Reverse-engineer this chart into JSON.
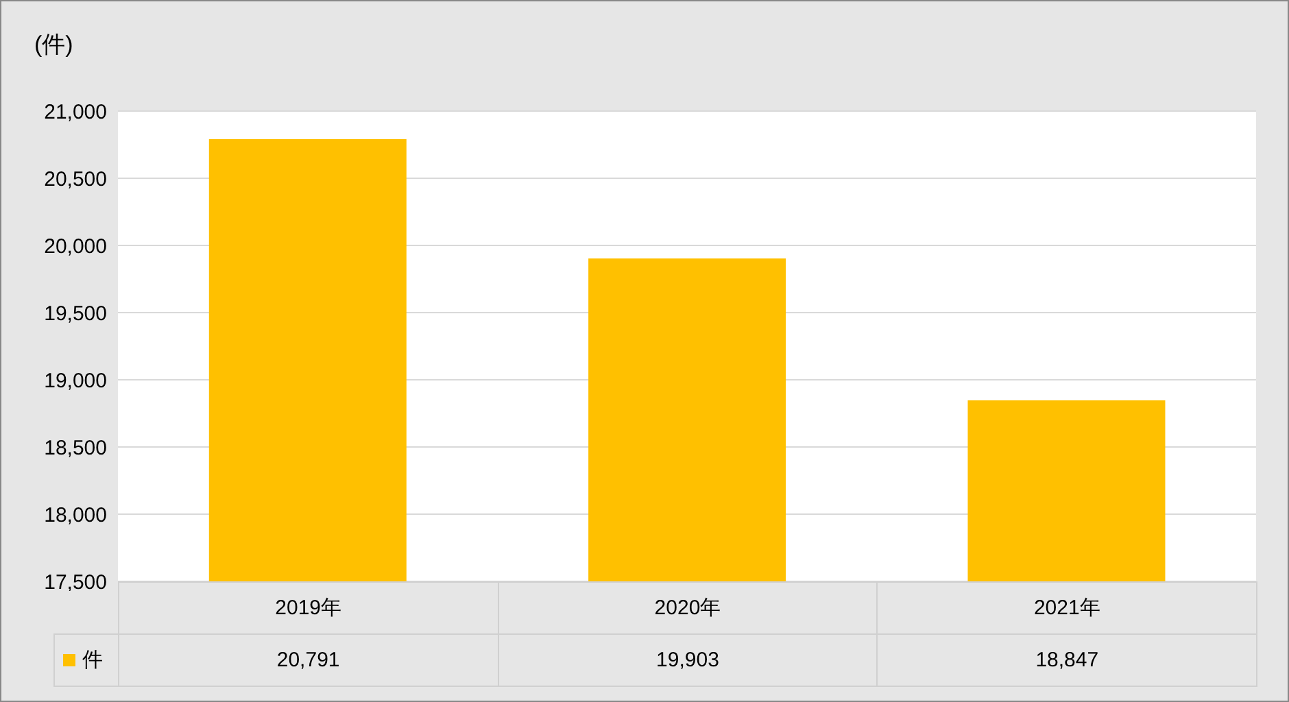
{
  "chart_data": {
    "type": "bar",
    "ylabel": "(件)",
    "categories": [
      "2019年",
      "2020年",
      "2021年"
    ],
    "series": [
      {
        "name": "件",
        "color": "#ffc000",
        "values": [
          20791,
          19903,
          18847
        ],
        "value_labels": [
          "20,791",
          "19,903",
          "18,847"
        ]
      }
    ],
    "ylim": [
      17500,
      21000
    ],
    "yticks": [
      {
        "value": 17500,
        "label": "17,500"
      },
      {
        "value": 18000,
        "label": "18,000"
      },
      {
        "value": 18500,
        "label": "18,500"
      },
      {
        "value": 19000,
        "label": "19,000"
      },
      {
        "value": 19500,
        "label": "19,500"
      },
      {
        "value": 20000,
        "label": "20,000"
      },
      {
        "value": 20500,
        "label": "20,500"
      },
      {
        "value": 21000,
        "label": "21,000"
      }
    ],
    "grid": "y",
    "legend": "bottom"
  }
}
